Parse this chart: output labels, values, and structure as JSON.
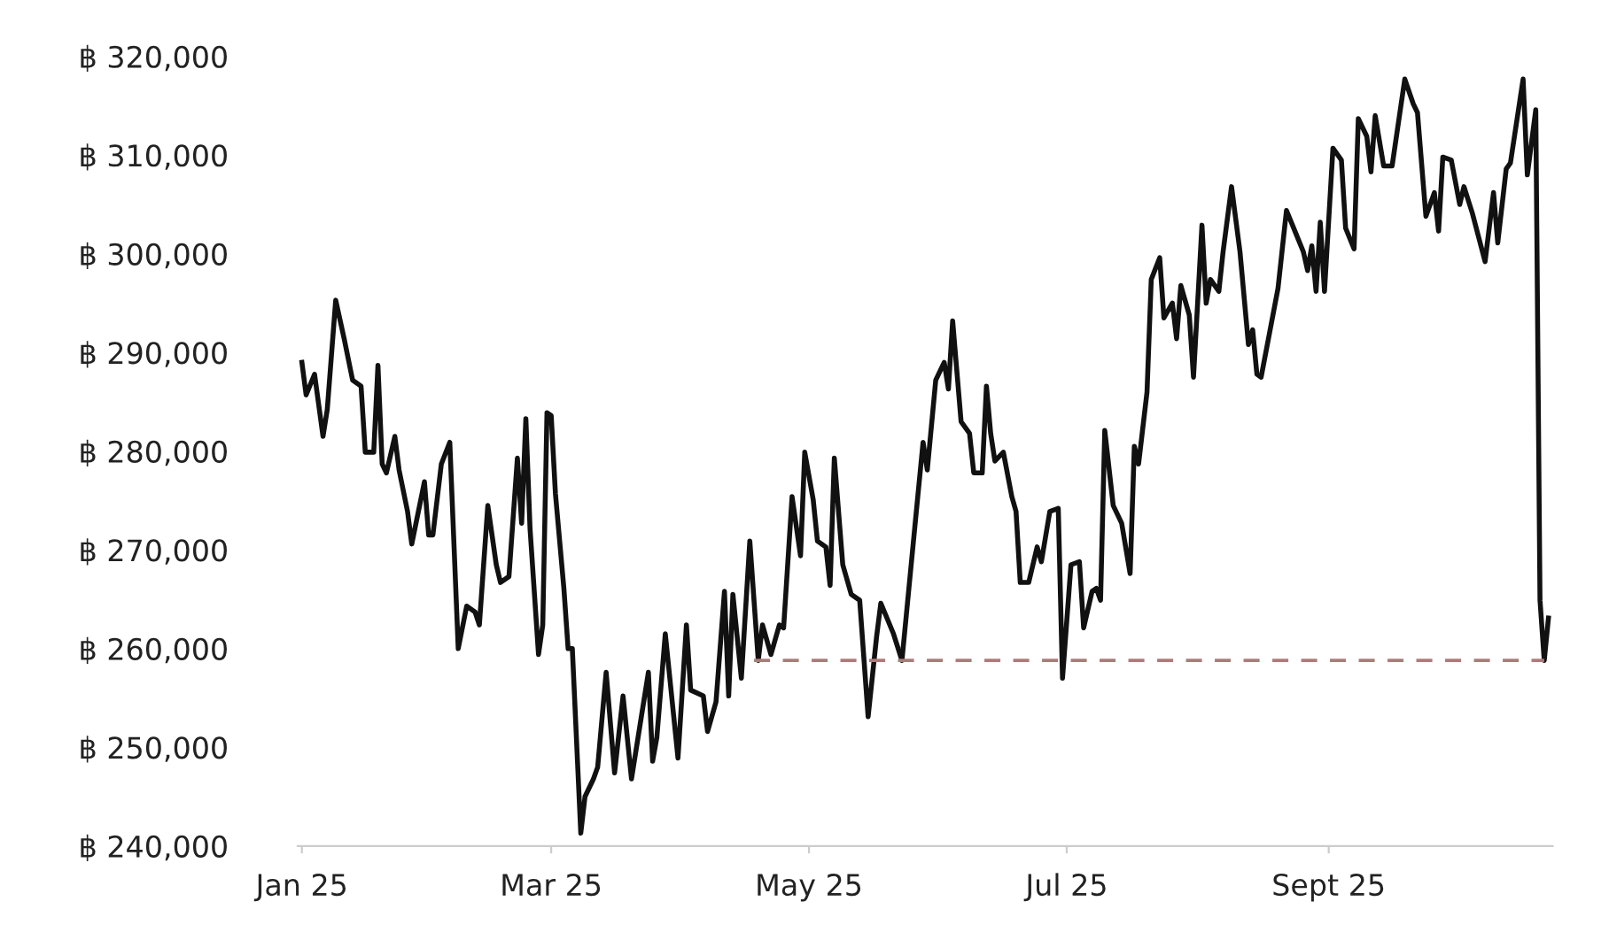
{
  "chart_data": {
    "type": "line",
    "series": [
      {
        "color": "#111111",
        "line_style": "solid",
        "x": [
          "2025-01-01",
          "2025-01-02",
          "2025-01-04",
          "2025-01-06",
          "2025-01-07",
          "2025-01-09",
          "2025-01-11",
          "2025-01-13",
          "2025-01-15",
          "2025-01-16",
          "2025-01-18",
          "2025-01-19",
          "2025-01-20",
          "2025-01-21",
          "2025-01-23",
          "2025-01-24",
          "2025-01-26",
          "2025-01-27",
          "2025-01-30",
          "2025-01-31",
          "2025-02-01",
          "2025-02-03",
          "2025-02-05",
          "2025-02-07",
          "2025-02-09",
          "2025-02-11",
          "2025-02-12",
          "2025-02-14",
          "2025-02-16",
          "2025-02-17",
          "2025-02-19",
          "2025-02-21",
          "2025-02-22",
          "2025-02-23",
          "2025-02-24",
          "2025-02-26",
          "2025-02-27",
          "2025-02-28",
          "2025-03-01",
          "2025-03-02",
          "2025-03-04",
          "2025-03-05",
          "2025-03-06",
          "2025-03-08",
          "2025-03-09",
          "2025-03-11",
          "2025-03-12",
          "2025-03-14",
          "2025-03-16",
          "2025-03-18",
          "2025-03-20",
          "2025-03-22",
          "2025-03-24",
          "2025-03-25",
          "2025-03-26",
          "2025-03-28",
          "2025-03-31",
          "2025-04-02",
          "2025-04-03",
          "2025-04-06",
          "2025-04-07",
          "2025-04-09",
          "2025-04-11",
          "2025-04-12",
          "2025-04-13",
          "2025-04-15",
          "2025-04-17",
          "2025-04-19",
          "2025-04-20",
          "2025-04-22",
          "2025-04-24",
          "2025-04-25",
          "2025-04-27",
          "2025-04-29",
          "2025-04-30",
          "2025-05-02",
          "2025-05-03",
          "2025-05-05",
          "2025-05-06",
          "2025-05-07",
          "2025-05-09",
          "2025-05-11",
          "2025-05-13",
          "2025-05-15",
          "2025-05-17",
          "2025-05-18",
          "2025-05-21",
          "2025-05-23",
          "2025-05-26",
          "2025-05-28",
          "2025-05-29",
          "2025-05-31",
          "2025-06-02",
          "2025-06-03",
          "2025-06-04",
          "2025-06-06",
          "2025-06-08",
          "2025-06-09",
          "2025-06-11",
          "2025-06-12",
          "2025-06-13",
          "2025-06-14",
          "2025-06-16",
          "2025-06-18",
          "2025-06-19",
          "2025-06-20",
          "2025-06-22",
          "2025-06-24",
          "2025-06-25",
          "2025-06-27",
          "2025-06-29",
          "2025-06-30",
          "2025-07-02",
          "2025-07-04",
          "2025-07-05",
          "2025-07-07",
          "2025-07-08",
          "2025-07-09",
          "2025-07-10",
          "2025-07-12",
          "2025-07-14",
          "2025-07-16",
          "2025-07-17",
          "2025-07-18",
          "2025-07-20",
          "2025-07-21",
          "2025-07-23",
          "2025-07-24",
          "2025-07-26",
          "2025-07-27",
          "2025-07-28",
          "2025-07-30",
          "2025-07-31",
          "2025-08-02",
          "2025-08-03",
          "2025-08-04",
          "2025-08-06",
          "2025-08-07",
          "2025-08-09",
          "2025-08-11",
          "2025-08-13",
          "2025-08-14",
          "2025-08-15",
          "2025-08-16",
          "2025-08-18",
          "2025-08-20",
          "2025-08-22",
          "2025-08-24",
          "2025-08-26",
          "2025-08-27",
          "2025-08-28",
          "2025-08-29",
          "2025-08-30",
          "2025-08-31",
          "2025-09-02",
          "2025-09-04",
          "2025-09-05",
          "2025-09-07",
          "2025-09-08",
          "2025-09-10",
          "2025-09-11",
          "2025-09-12",
          "2025-09-14",
          "2025-09-16",
          "2025-09-19",
          "2025-09-21",
          "2025-09-22",
          "2025-09-24",
          "2025-09-26",
          "2025-09-27",
          "2025-09-28",
          "2025-09-30",
          "2025-10-02",
          "2025-10-03",
          "2025-10-05",
          "2025-10-08",
          "2025-10-10",
          "2025-10-11",
          "2025-10-13",
          "2025-10-14",
          "2025-10-17",
          "2025-10-18",
          "2025-10-20",
          "2025-10-21",
          "2025-10-22",
          "2025-10-23"
        ],
        "values": [
          289000,
          285700,
          287800,
          281500,
          284200,
          295300,
          291400,
          287200,
          286600,
          279900,
          279900,
          288700,
          278700,
          277800,
          281500,
          278100,
          273900,
          270600,
          276900,
          271500,
          271500,
          278700,
          280900,
          260000,
          264300,
          263700,
          262400,
          274500,
          268500,
          266700,
          267300,
          279300,
          272700,
          283300,
          272100,
          259400,
          262400,
          283900,
          283600,
          275700,
          266100,
          260000,
          260000,
          241300,
          245000,
          246800,
          248000,
          257600,
          247400,
          255200,
          246800,
          252200,
          257600,
          248600,
          251000,
          261500,
          248900,
          262400,
          255800,
          255200,
          251600,
          254600,
          265800,
          255200,
          265500,
          257000,
          270900,
          258800,
          262400,
          259400,
          262400,
          262100,
          275400,
          269400,
          279900,
          275100,
          270900,
          270300,
          266400,
          279300,
          268500,
          265500,
          264900,
          253100,
          261200,
          264600,
          261500,
          258800,
          272100,
          280900,
          278100,
          287200,
          289000,
          286300,
          293200,
          283000,
          281800,
          277800,
          277800,
          286600,
          281800,
          279000,
          279900,
          275400,
          273900,
          266700,
          266700,
          270300,
          268800,
          273900,
          274200,
          257000,
          268500,
          268800,
          262100,
          265800,
          266100,
          264900,
          282100,
          274500,
          272700,
          267600,
          280500,
          278700,
          286000,
          297400,
          299600,
          293500,
          295000,
          291400,
          296800,
          293800,
          287500,
          302900,
          295000,
          297400,
          296200,
          300200,
          306800,
          300200,
          290800,
          292300,
          287800,
          287500,
          292000,
          296500,
          304400,
          302300,
          300200,
          298300,
          300800,
          296200,
          303200,
          296200,
          310700,
          309500,
          302600,
          300500,
          313700,
          311900,
          308300,
          314000,
          308900,
          308900,
          317700,
          315200,
          314300,
          303800,
          306200,
          302300,
          309800,
          309500,
          305000,
          306800,
          304100,
          299200,
          306200,
          301100,
          308600,
          309200,
          317700,
          308000,
          314600,
          264900,
          258800,
          263100
        ]
      },
      {
        "color": "#b07a7a",
        "line_style": "dashed",
        "x": [
          "2025-04-18",
          "2025-10-22"
        ],
        "values": [
          258800,
          258800
        ]
      }
    ],
    "xlim": [
      "2024-12-31",
      "2025-10-24"
    ],
    "xticks": [
      {
        "value": "2025-01-01",
        "label": "Jan 25"
      },
      {
        "value": "2025-03-01",
        "label": "Mar 25"
      },
      {
        "value": "2025-05-01",
        "label": "May 25"
      },
      {
        "value": "2025-07-01",
        "label": "Jul 25"
      },
      {
        "value": "2025-09-01",
        "label": "Sept 25"
      }
    ],
    "ylim": [
      240000,
      320000
    ],
    "yticks": [
      {
        "value": 240000,
        "label": "฿ 240,000"
      },
      {
        "value": 250000,
        "label": "฿ 250,000"
      },
      {
        "value": 260000,
        "label": "฿ 260,000"
      },
      {
        "value": 270000,
        "label": "฿ 270,000"
      },
      {
        "value": 280000,
        "label": "฿ 280,000"
      },
      {
        "value": 290000,
        "label": "฿ 290,000"
      },
      {
        "value": 300000,
        "label": "฿ 300,000"
      },
      {
        "value": 310000,
        "label": "฿ 310,000"
      },
      {
        "value": 320000,
        "label": "฿ 320,000"
      }
    ],
    "grid": false,
    "legend": false
  }
}
